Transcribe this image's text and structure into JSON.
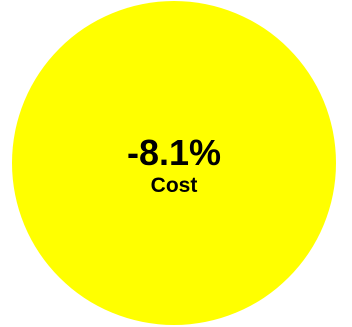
{
  "indicator": {
    "value": "-8.1%",
    "label": "Cost",
    "fill_color": "#ffff00",
    "text_color": "#000000"
  }
}
